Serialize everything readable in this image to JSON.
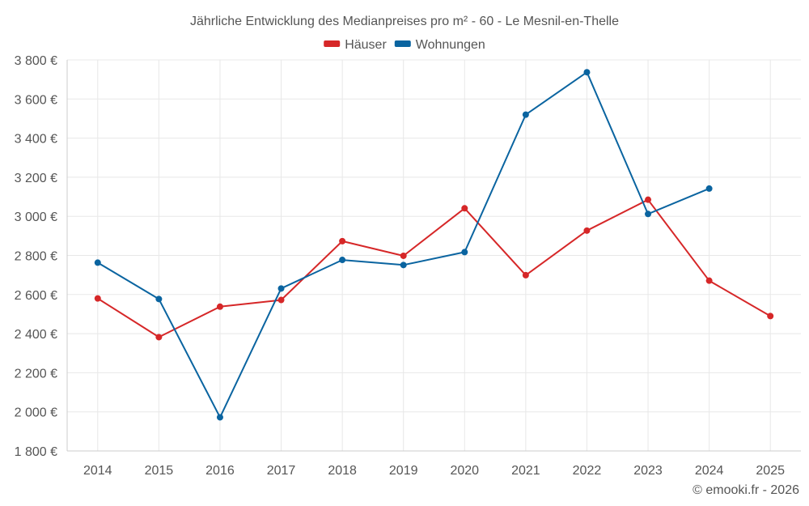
{
  "chart_data": {
    "type": "line",
    "title": "Jährliche Entwicklung des Medianpreises pro m² - 60 - Le Mesnil-en-Thelle",
    "categories": [
      "2014",
      "2015",
      "2016",
      "2017",
      "2018",
      "2019",
      "2020",
      "2021",
      "2022",
      "2023",
      "2024",
      "2025"
    ],
    "series": [
      {
        "name": "Häuser",
        "color": "#d62728",
        "values": [
          2580,
          2382,
          2538,
          2572,
          2873,
          2798,
          3041,
          2699,
          2927,
          3085,
          2671,
          2490
        ]
      },
      {
        "name": "Wohnungen",
        "color": "#0a64a0",
        "values": [
          2763,
          2577,
          1972,
          2631,
          2777,
          2751,
          2817,
          3520,
          3737,
          3012,
          3142,
          null
        ]
      }
    ],
    "ylim": [
      1800,
      3800
    ],
    "yticks": [
      1800,
      2000,
      2200,
      2400,
      2600,
      2800,
      3000,
      3200,
      3400,
      3600,
      3800
    ],
    "ytick_labels": [
      "1 800 €",
      "2 000 €",
      "2 200 €",
      "2 400 €",
      "2 600 €",
      "2 800 €",
      "3 000 €",
      "3 200 €",
      "3 400 €",
      "3 600 €",
      "3 800 €"
    ],
    "grid": true,
    "legend_position": "top-center",
    "xlabel": "",
    "ylabel": ""
  },
  "credit": "© emooki.fr - 2026"
}
